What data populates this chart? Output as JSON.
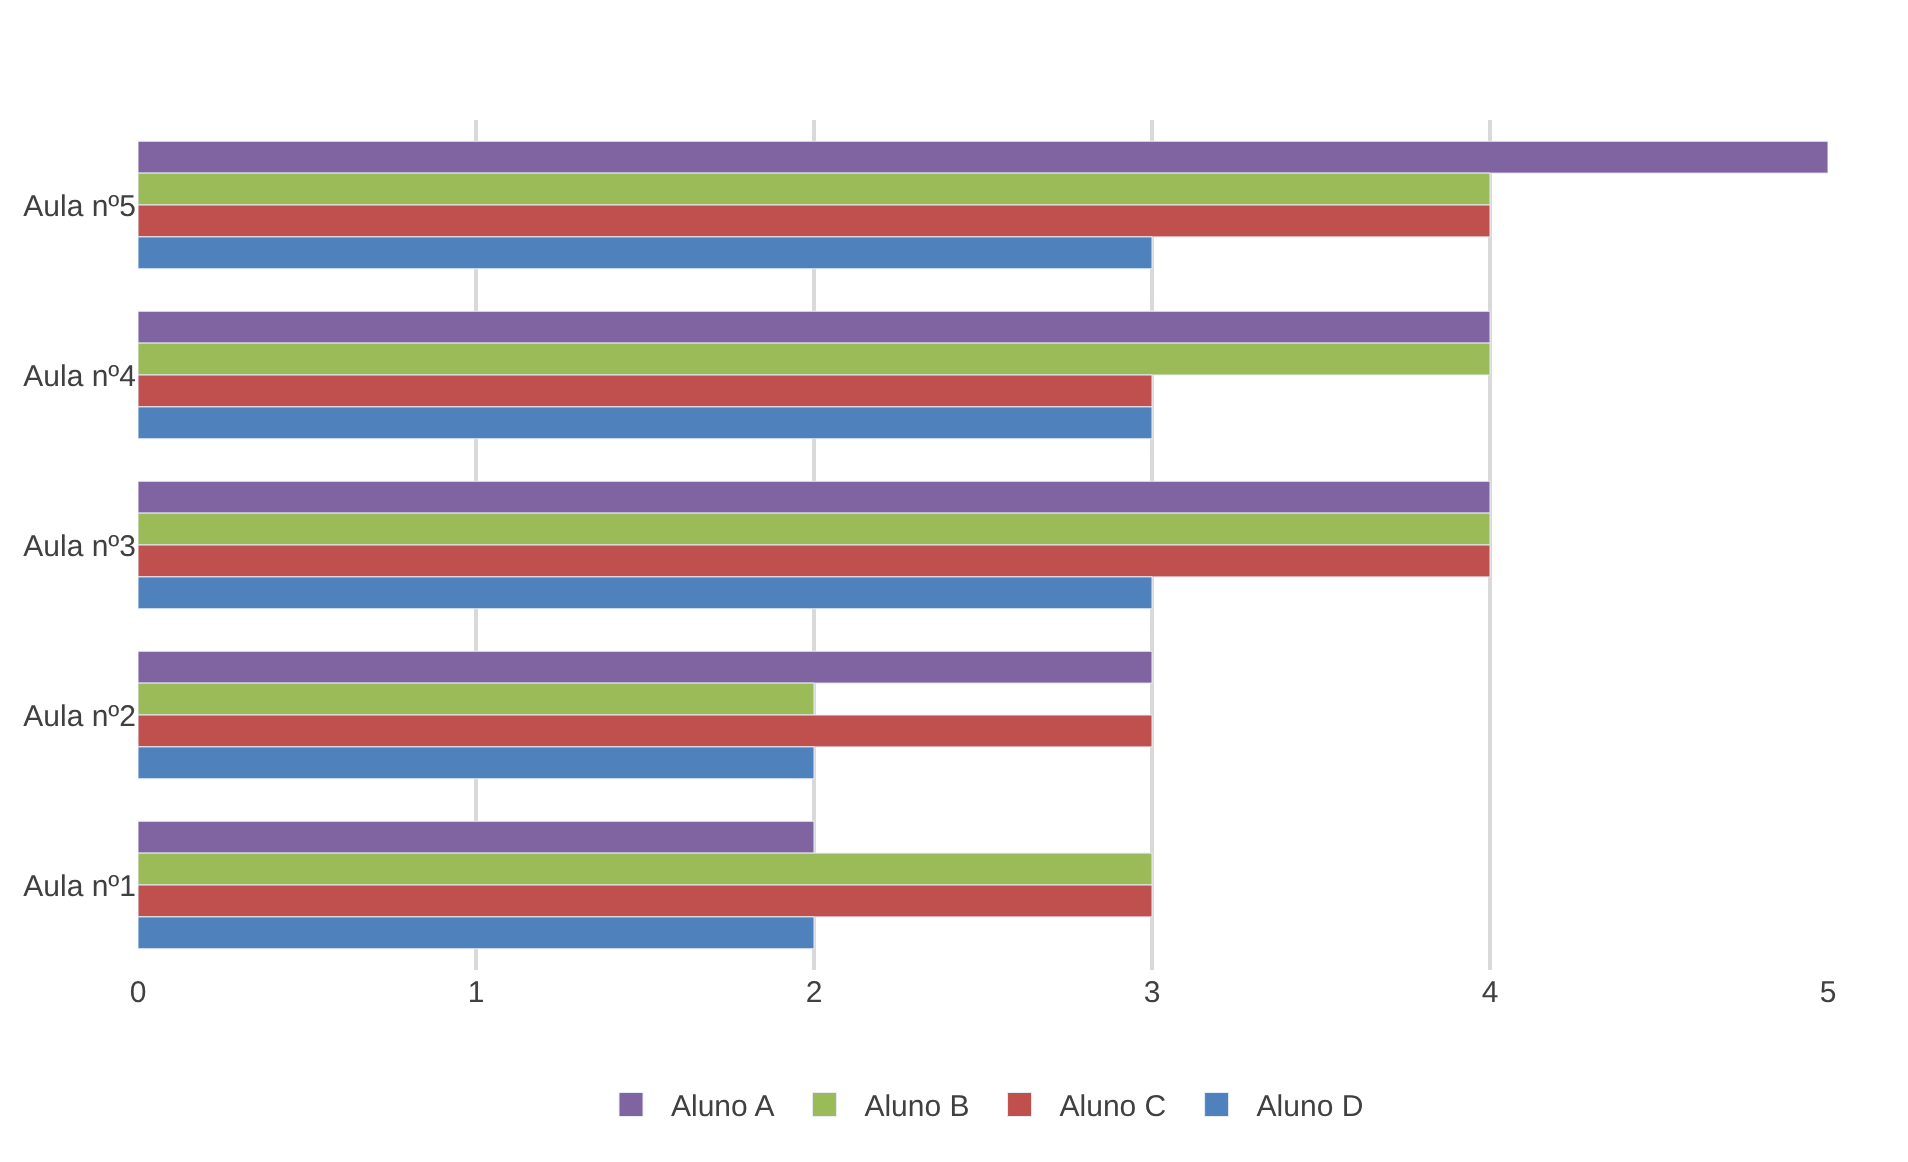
{
  "chart_data": {
    "type": "bar",
    "orientation": "horizontal",
    "categories": [
      "Aula nº5",
      "Aula nº4",
      "Aula nº3",
      "Aula nº2",
      "Aula nº1"
    ],
    "series": [
      {
        "name": "Aluno A",
        "color": "#8064a2",
        "values": [
          5,
          4,
          4,
          3,
          2
        ]
      },
      {
        "name": "Aluno B",
        "color": "#9bbb59",
        "values": [
          4,
          4,
          4,
          2,
          3
        ]
      },
      {
        "name": "Aluno C",
        "color": "#c0504d",
        "values": [
          4,
          3,
          4,
          3,
          3
        ]
      },
      {
        "name": "Aluno D",
        "color": "#4f81bd",
        "values": [
          3,
          3,
          3,
          2,
          2
        ]
      }
    ],
    "xlim": [
      0,
      5
    ],
    "xticks": [
      0,
      1,
      2,
      3,
      4,
      5
    ],
    "grid": "x",
    "legend": "bottom"
  }
}
